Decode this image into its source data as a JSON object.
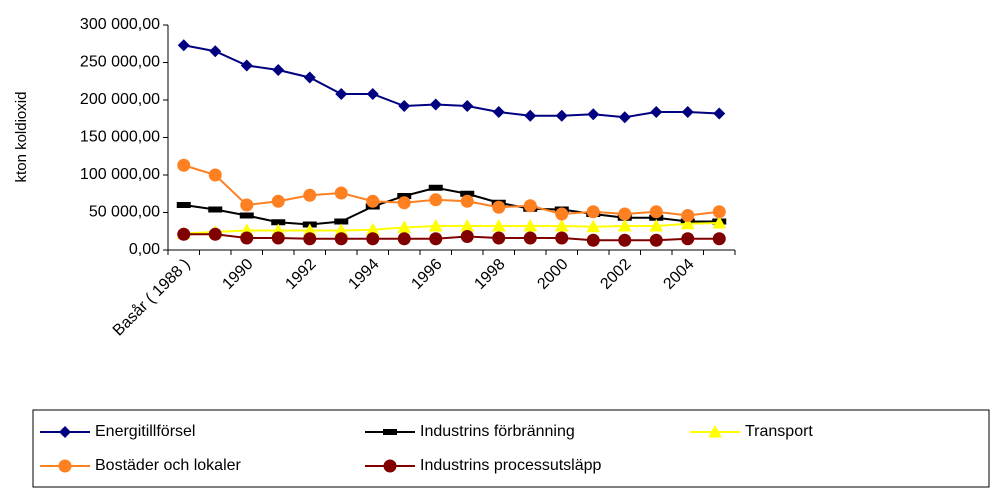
{
  "chart_data": {
    "type": "line",
    "y_label": "kton koldioxid",
    "categories": [
      "Basår ( 1988 )",
      null,
      "1990",
      null,
      "1992",
      null,
      "1994",
      null,
      "1996",
      null,
      "1998",
      null,
      "2000",
      null,
      "2002",
      null,
      "2004",
      null
    ],
    "ylim": [
      0,
      300000
    ],
    "yticks": [
      {
        "value": 0,
        "label": "0,00"
      },
      {
        "value": 50000,
        "label": "50 000,00"
      },
      {
        "value": 100000,
        "label": "100 000,00"
      },
      {
        "value": 150000,
        "label": "150 000,00"
      },
      {
        "value": 200000,
        "label": "200 000,00"
      },
      {
        "value": 250000,
        "label": "250 000,00"
      },
      {
        "value": 300000,
        "label": "300 000,00"
      }
    ],
    "grid": false,
    "legend": "bottom",
    "series": [
      {
        "name": "Energitillförsel",
        "color": "#000080",
        "marker": "diamond",
        "values": [
          273000,
          265000,
          246000,
          240000,
          230000,
          208000,
          208000,
          192000,
          194000,
          192000,
          184000,
          179000,
          179000,
          181000,
          177000,
          184000,
          184000,
          182000
        ]
      },
      {
        "name": "Industrins förbränning",
        "color": "#000000",
        "marker": "dash",
        "values": [
          60000,
          54000,
          46000,
          37000,
          34000,
          38000,
          58000,
          72000,
          83000,
          75000,
          63000,
          55000,
          54000,
          48000,
          43000,
          43000,
          38000,
          38000
        ]
      },
      {
        "name": "Transport",
        "color": "#ffff00",
        "marker": "triangle",
        "values": [
          22000,
          24000,
          26000,
          26000,
          26000,
          26000,
          27000,
          30000,
          32000,
          32000,
          32000,
          32000,
          32000,
          31000,
          32000,
          32000,
          35000,
          36000
        ]
      },
      {
        "name": "Bostäder och lokaler",
        "color": "#ff8020",
        "marker": "circle",
        "values": [
          113000,
          100000,
          60000,
          65000,
          73000,
          76000,
          65000,
          63000,
          67000,
          65000,
          57000,
          59000,
          48000,
          51000,
          48000,
          51000,
          46000,
          51000
        ]
      },
      {
        "name": "Industrins processutsläpp",
        "color": "#800000",
        "marker": "circle",
        "values": [
          21000,
          21000,
          16000,
          16000,
          15000,
          15000,
          15000,
          15000,
          15000,
          18000,
          16000,
          16000,
          16000,
          13000,
          13000,
          13000,
          15000,
          15000
        ]
      }
    ]
  }
}
